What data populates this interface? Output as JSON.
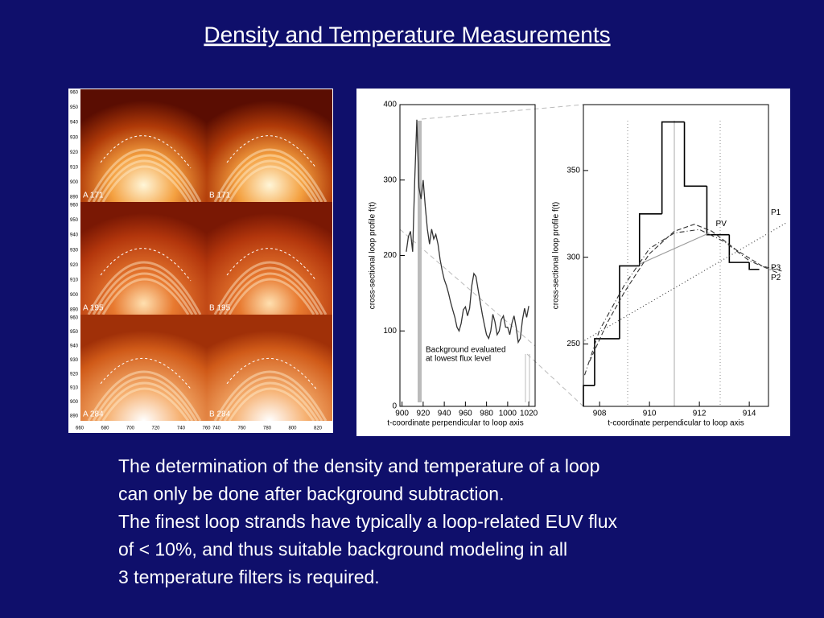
{
  "title": "Density and Temperature Measurements",
  "image_panels": {
    "labels": [
      "A 171",
      "B 171",
      "A 195",
      "B 195",
      "A 284",
      "B 284"
    ],
    "yticks": [
      960,
      950,
      940,
      930,
      920,
      910,
      900,
      890
    ],
    "xticks_a": [
      660,
      680,
      700,
      720,
      740,
      760
    ],
    "xticks_b": [
      740,
      760,
      780,
      800,
      820
    ]
  },
  "chart_data": [
    {
      "type": "line",
      "xlabel": "t-coordinate perpendicular to loop axis",
      "ylabel": "cross-sectional loop profile f(t)",
      "annotation": [
        "Background evaluated",
        "at lowest flux level"
      ],
      "x": [
        904,
        906,
        908,
        910,
        912,
        914,
        916,
        918,
        920,
        922,
        924,
        926,
        928,
        930,
        932,
        934,
        936,
        938,
        940,
        942,
        944,
        946,
        948,
        950,
        952,
        954,
        956,
        958,
        960,
        962,
        964,
        966,
        968,
        970,
        972,
        974,
        976,
        978,
        980,
        982,
        984,
        986,
        988,
        990,
        992,
        994,
        996,
        998,
        1000,
        1002,
        1004,
        1006,
        1008,
        1010,
        1012,
        1014,
        1016,
        1018,
        1020
      ],
      "values": [
        205,
        225,
        232,
        205,
        300,
        380,
        290,
        275,
        300,
        265,
        235,
        215,
        235,
        222,
        228,
        215,
        195,
        180,
        168,
        160,
        150,
        138,
        128,
        118,
        105,
        100,
        110,
        128,
        132,
        120,
        130,
        160,
        176,
        172,
        155,
        138,
        122,
        108,
        95,
        90,
        100,
        122,
        112,
        95,
        100,
        115,
        120,
        105,
        105,
        95,
        110,
        120,
        105,
        85,
        90,
        115,
        130,
        118,
        133
      ],
      "color": "#333333",
      "xlim": [
        898,
        1026
      ],
      "ylim": [
        0,
        400
      ],
      "xticks": [
        900,
        920,
        940,
        960,
        980,
        1000,
        1020
      ],
      "yticks": [
        0,
        100,
        200,
        300,
        400
      ]
    },
    {
      "type": "histogram",
      "xlabel": "t-coordinate perpendicular to loop axis",
      "ylabel": "cross-sectional loop profile f(t)",
      "bins": [
        907.35,
        907.8,
        908.8,
        909.6,
        910.5,
        911.4,
        912.3,
        913.2,
        914.0,
        914.4
      ],
      "values": [
        226,
        253,
        295,
        325,
        378,
        341,
        313,
        297,
        293
      ],
      "color": "#000000",
      "series": [
        {
          "name": "PV",
          "color": "#999999",
          "x": [
            909.6,
            912.4
          ],
          "values": [
            296,
            314
          ]
        },
        {
          "name": "P1",
          "color": "#333333",
          "x": [
            907.4,
            915.5
          ],
          "values": [
            252,
            320
          ]
        },
        {
          "name": "P3",
          "color": "#333333",
          "x": [
            907.6,
            908.3,
            909,
            910,
            911,
            911.8,
            912.5,
            913.5,
            914.5,
            915.3
          ],
          "values": [
            240,
            262,
            280,
            302,
            315,
            319,
            315,
            304,
            295,
            292
          ]
        },
        {
          "name": "P2",
          "color": "#333333",
          "x": [
            907.4,
            908,
            909,
            910,
            911,
            912,
            913,
            914,
            915.3
          ],
          "values": [
            232,
            258,
            284,
            305,
            314,
            316,
            309,
            298,
            290
          ]
        }
      ],
      "xlim": [
        907.35,
        914.77
      ],
      "ylim": [
        214,
        388
      ],
      "xticks": [
        908,
        910,
        912,
        914
      ],
      "yticks": [
        250,
        300,
        350
      ]
    }
  ],
  "body": [
    "The determination of the density and temperature of a loop",
    "can only be done after background subtraction.",
    "The finest loop strands have typically a loop-related EUV flux",
    "of < 10%,  and thus suitable background modeling in all",
    "3 temperature filters is required."
  ]
}
